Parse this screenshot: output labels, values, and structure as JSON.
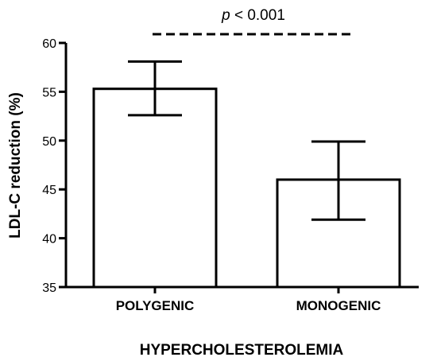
{
  "chart_data": {
    "type": "bar",
    "categories": [
      "POLYGENIC",
      "MONOGENIC"
    ],
    "values": [
      55.3,
      46.0
    ],
    "error_upper": [
      58.1,
      49.9
    ],
    "error_lower": [
      52.6,
      41.9
    ],
    "title": "",
    "xlabel": "HYPERCHOLESTEROLEMIA",
    "ylabel": "LDL-C reduction (%)",
    "ylim": [
      35,
      60
    ],
    "yticks": [
      "35",
      "40",
      "45",
      "50",
      "55",
      "60"
    ],
    "grid": false,
    "annotation": {
      "italic": "p",
      "text": " < 0.001"
    },
    "colors": {
      "bar_fill": "#ffffff",
      "bar_stroke": "#000000"
    }
  }
}
